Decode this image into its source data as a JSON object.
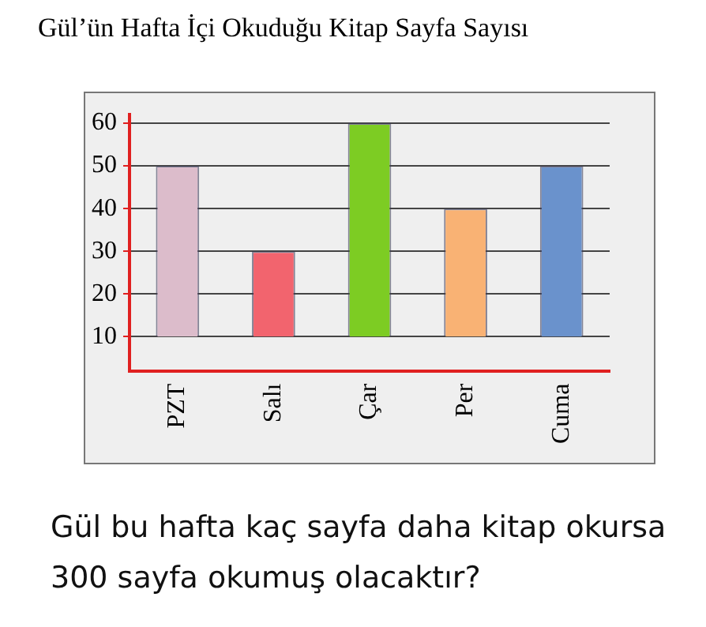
{
  "chart_data": {
    "type": "bar",
    "title": "Gül’ün Hafta İçi Okuduğu Kitap Sayfa Sayısı",
    "categories": [
      "PZT",
      "Salı",
      "Çar",
      "Per",
      "Cuma"
    ],
    "base": [
      10,
      10,
      10,
      10,
      10
    ],
    "values": [
      40,
      20,
      50,
      30,
      40
    ],
    "colors": [
      "#dcbccb",
      "#f2646e",
      "#7dcc23",
      "#f9b274",
      "#6a92cc"
    ],
    "ylim": [
      2,
      62
    ],
    "yticks": [
      10,
      20,
      30,
      40,
      50,
      60
    ],
    "grid": "y",
    "legend": false,
    "annotations": [
      "Gül bu hafta kaç sayfa daha kitap okursa 300 sayfa okumuş olacaktır?"
    ]
  }
}
